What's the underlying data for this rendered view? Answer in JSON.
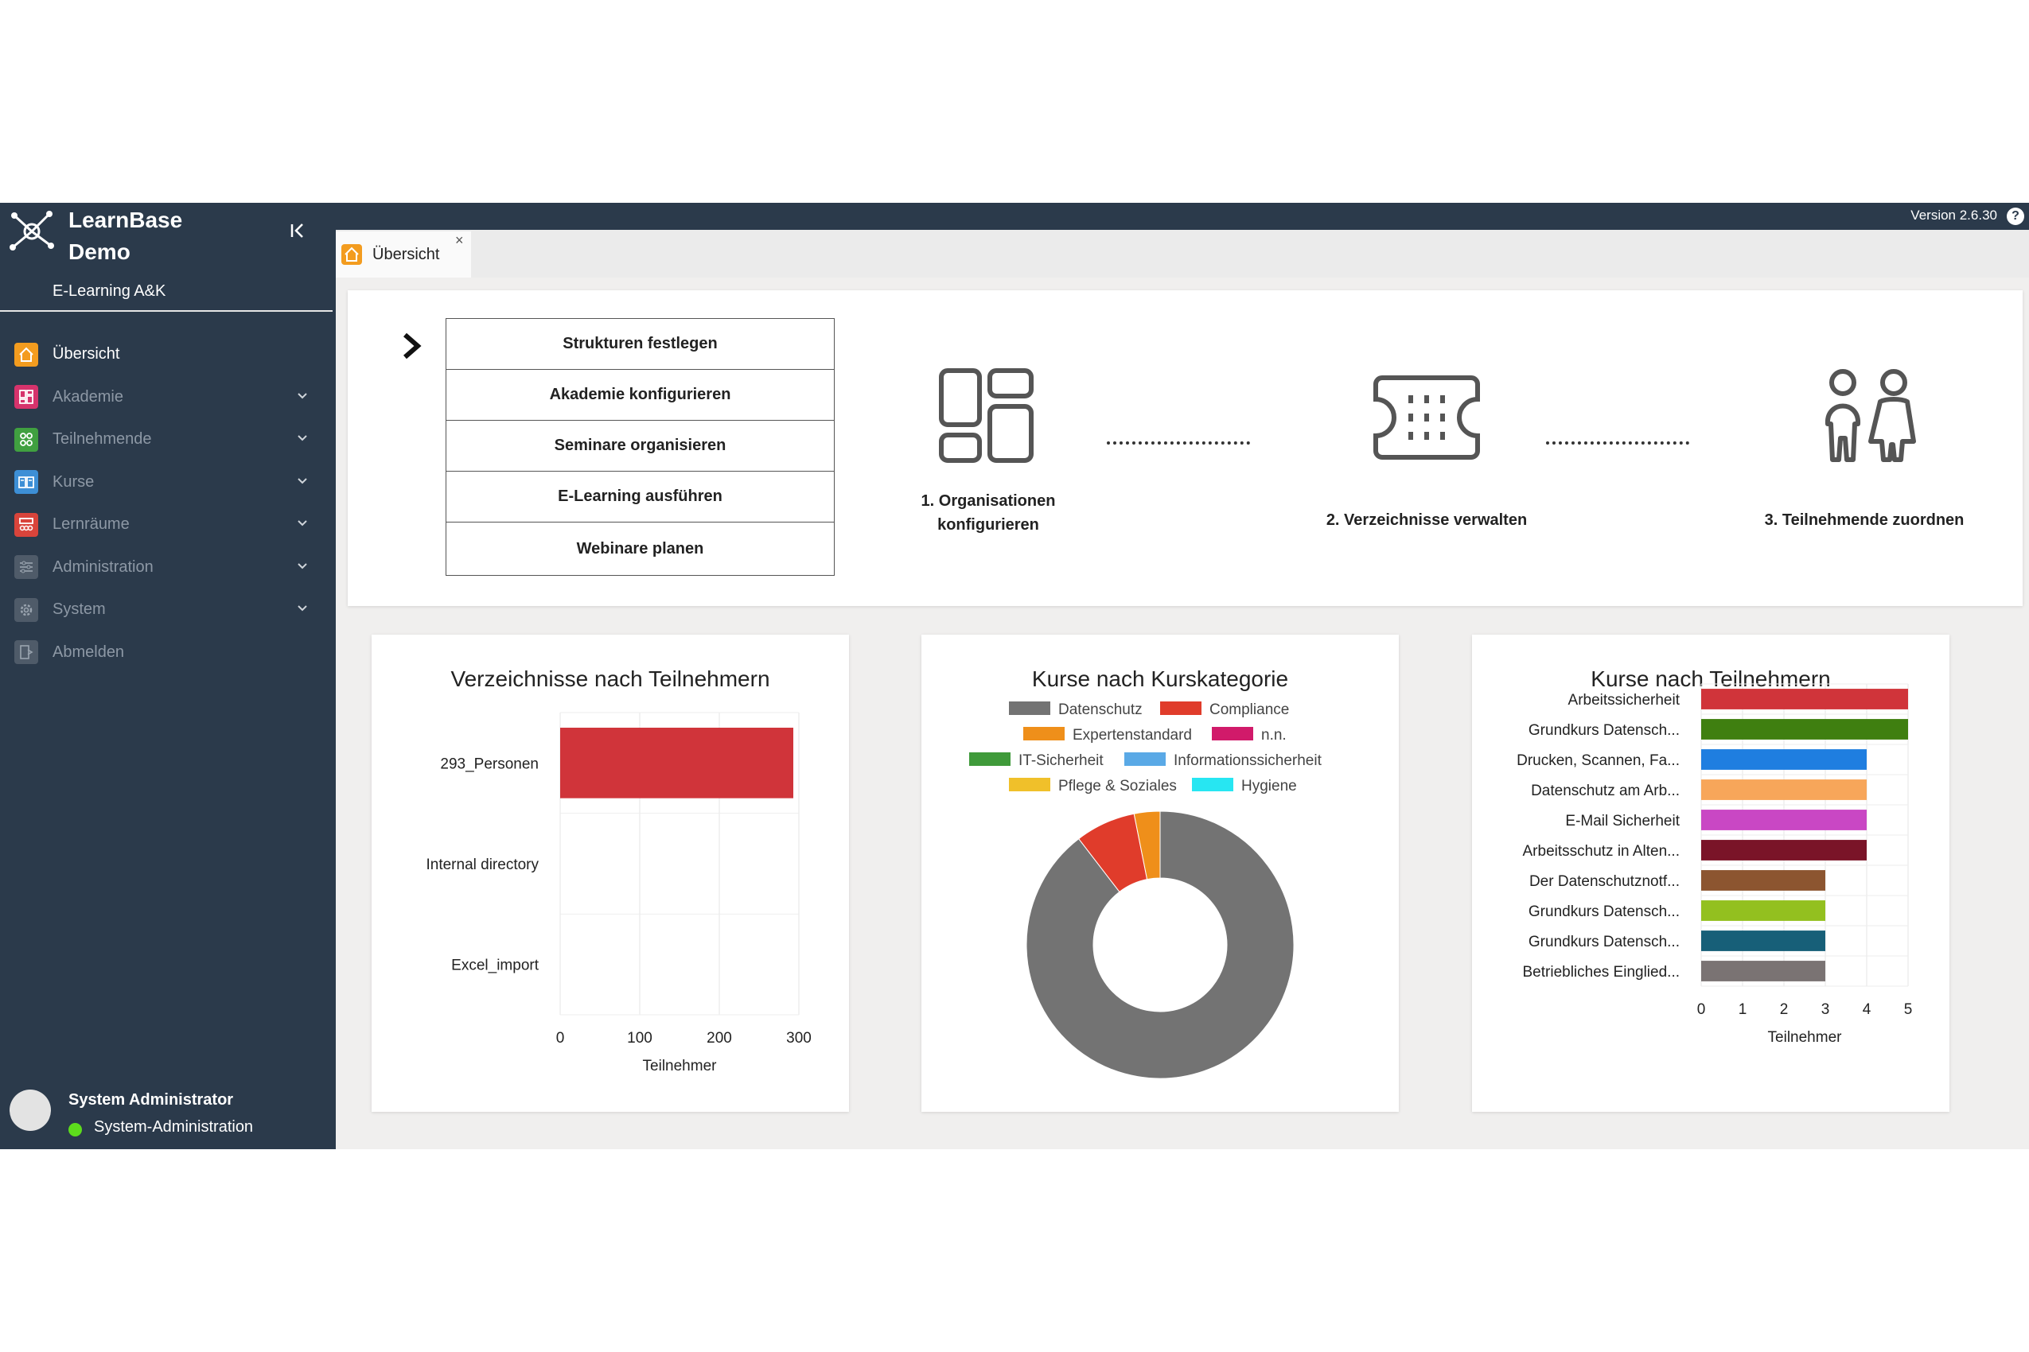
{
  "sidebar": {
    "brand_line1": "LearnBase",
    "brand_line2": "Demo",
    "org": "E-Learning A&K",
    "items": [
      {
        "label": "Übersicht",
        "icon": "home-icon",
        "color": "#f39c1f",
        "active": true
      },
      {
        "label": "Akademie",
        "icon": "layout-icon",
        "color": "#d6336c"
      },
      {
        "label": "Teilnehmende",
        "icon": "people-icon",
        "color": "#40a040"
      },
      {
        "label": "Kurse",
        "icon": "book-icon",
        "color": "#3d8fd6"
      },
      {
        "label": "Lernräume",
        "icon": "room-icon",
        "color": "#d9443b"
      },
      {
        "label": "Administration",
        "icon": "sliders-icon",
        "color": "#7c8794"
      },
      {
        "label": "System",
        "icon": "gear-icon",
        "color": "#7c8794"
      },
      {
        "label": "Abmelden",
        "icon": "logout-icon",
        "color": "#7c8794"
      }
    ],
    "user_name": "System Administrator",
    "user_role": "System-Administration"
  },
  "topbar": {
    "version": "Version 2.6.30",
    "help": "?"
  },
  "tabs": [
    {
      "label": "Übersicht",
      "close": "×"
    }
  ],
  "workflow": {
    "buttons": [
      "Strukturen festlegen",
      "Akademie konfigurieren",
      "Seminare organisieren",
      "E-Learning ausführen",
      "Webinare planen"
    ],
    "step1_line1": "1. Organisationen",
    "step1_line2": "konfigurieren",
    "step2": "2. Verzeichnisse verwalten",
    "step3": "3. Teilnehmende zuordnen"
  },
  "chart_data": [
    {
      "type": "bar",
      "orientation": "horizontal",
      "title": "Verzeichnisse nach Teilnehmern",
      "categories": [
        "293_Personen",
        "Internal directory",
        "Excel_import"
      ],
      "values": [
        293,
        0,
        0
      ],
      "colors": [
        "#d0343a"
      ],
      "xlabel": "Teilnehmer",
      "xlim": [
        0,
        300
      ],
      "xticks": [
        0,
        100,
        200,
        300
      ],
      "grid": true
    },
    {
      "type": "pie",
      "donut": true,
      "title": "Kurse nach Kurskategorie",
      "legend_position": "top",
      "slices": [
        {
          "label": "Datenschutz",
          "value": 86,
          "color": "#737373"
        },
        {
          "label": "Compliance",
          "value": 7,
          "color": "#e03c2b"
        },
        {
          "label": "Expertenstandard",
          "value": 3,
          "color": "#ef8f1a"
        },
        {
          "label": "n.n.",
          "value": 0,
          "color": "#d11a6a"
        },
        {
          "label": "IT-Sicherheit",
          "value": 0,
          "color": "#3f9a3a"
        },
        {
          "label": "Informationssicherheit",
          "value": 0,
          "color": "#5aa9e6"
        },
        {
          "label": "Pflege & Soziales",
          "value": 0,
          "color": "#f0c02a"
        },
        {
          "label": "Hygiene",
          "value": 0,
          "color": "#27e6f2"
        }
      ]
    },
    {
      "type": "bar",
      "orientation": "horizontal",
      "title": "Kurse nach Teilnehmern",
      "categories": [
        "Arbeitssicherheit",
        "Grundkurs Datensch...",
        "Drucken, Scannen, Fa...",
        "Datenschutz am Arb...",
        "E-Mail Sicherheit",
        "Arbeitsschutz in Alten...",
        "Der Datenschutznotf...",
        "Grundkurs Datensch...",
        "Grundkurs Datensch...",
        "Betriebliches Einglied..."
      ],
      "values": [
        5,
        5,
        4,
        4,
        4,
        4,
        3,
        3,
        3,
        3
      ],
      "colors": [
        "#d0343a",
        "#3f7f10",
        "#1f7ee0",
        "#f7a65a",
        "#c947c4",
        "#7a1428",
        "#8c5530",
        "#93c01f",
        "#175f78",
        "#7a7373"
      ],
      "xlabel": "Teilnehmer",
      "xlim": [
        0,
        5
      ],
      "xticks": [
        0,
        1,
        2,
        3,
        4,
        5
      ],
      "grid": true
    }
  ]
}
